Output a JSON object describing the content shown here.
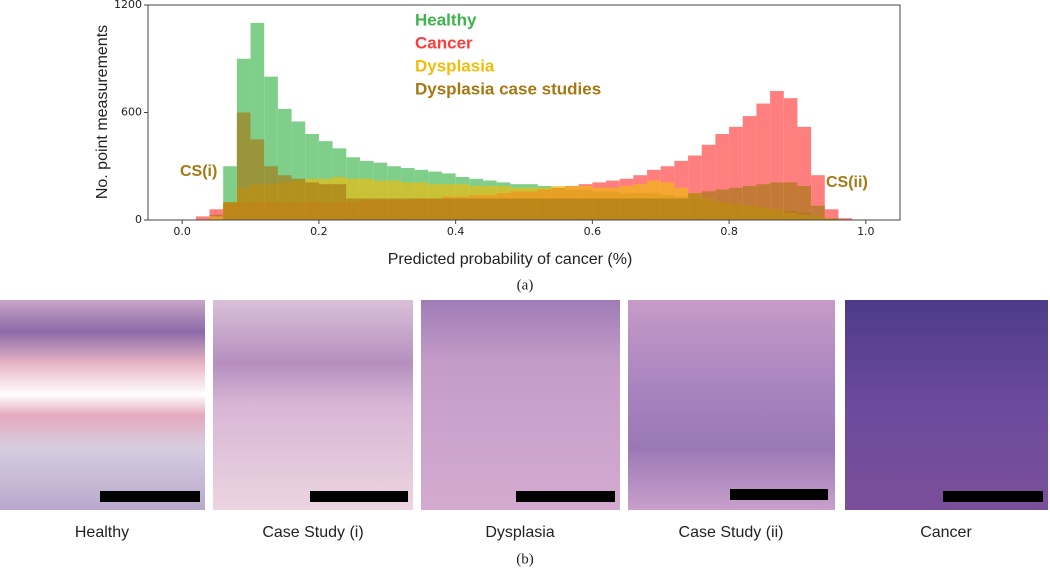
{
  "chart_data": {
    "type": "histogram",
    "ylabel": "No. point measurements",
    "xlabel": "Predicted probability of cancer (%)",
    "xlim": [
      -0.05,
      1.05
    ],
    "ylim": [
      0,
      1200
    ],
    "xticks": [
      {
        "value": 0,
        "label": "0.0"
      },
      0.2,
      0.4,
      0.6,
      0.8,
      {
        "value": 1,
        "label": "1.0"
      }
    ],
    "yticks": [
      0,
      600,
      1200
    ],
    "legend": "upper center",
    "annotations": [
      "CS(i)",
      "CS(ii)"
    ],
    "bins": [
      0,
      0.02,
      0.04,
      0.06,
      0.08,
      0.1,
      0.12,
      0.14,
      0.16,
      0.18,
      0.2,
      0.22,
      0.24,
      0.26,
      0.28,
      0.3,
      0.32,
      0.34,
      0.36,
      0.38,
      0.4,
      0.42,
      0.44,
      0.46,
      0.48,
      0.5,
      0.52,
      0.54,
      0.56,
      0.58,
      0.6,
      0.62,
      0.64,
      0.66,
      0.68,
      0.7,
      0.72,
      0.74,
      0.76,
      0.78,
      0.8,
      0.82,
      0.84,
      0.86,
      0.88,
      0.9,
      0.92,
      0.94,
      0.96,
      0.98,
      1.0
    ],
    "series": [
      {
        "name": "Healthy",
        "color": "#3cb44b",
        "values": [
          0,
          0,
          30,
          300,
          900,
          1100,
          800,
          620,
          550,
          480,
          440,
          400,
          350,
          330,
          320,
          300,
          290,
          280,
          270,
          260,
          240,
          230,
          220,
          210,
          200,
          200,
          190,
          180,
          170,
          170,
          160,
          160,
          150,
          150,
          150,
          140,
          130,
          120,
          110,
          100,
          90,
          80,
          70,
          60,
          50,
          40,
          20,
          5,
          0,
          0
        ]
      },
      {
        "name": "Cancer",
        "color": "#ff3b3b",
        "values": [
          0,
          20,
          60,
          90,
          100,
          100,
          100,
          100,
          100,
          100,
          100,
          100,
          100,
          110,
          110,
          110,
          110,
          120,
          120,
          130,
          130,
          140,
          140,
          150,
          160,
          160,
          170,
          180,
          190,
          200,
          210,
          220,
          230,
          250,
          280,
          300,
          330,
          360,
          420,
          480,
          520,
          580,
          650,
          720,
          680,
          520,
          250,
          60,
          10,
          0
        ]
      },
      {
        "name": "Dysplasia",
        "color": "#f2bd0a",
        "values": [
          0,
          0,
          20,
          100,
          180,
          200,
          200,
          210,
          220,
          230,
          230,
          240,
          230,
          230,
          220,
          220,
          210,
          210,
          200,
          200,
          200,
          190,
          190,
          190,
          180,
          180,
          180,
          190,
          190,
          190,
          180,
          180,
          190,
          200,
          220,
          210,
          180,
          150,
          120,
          100,
          90,
          80,
          70,
          60,
          40,
          30,
          20,
          10,
          0,
          0
        ]
      },
      {
        "name": "Dysplasia case studies",
        "color": "#a67812",
        "values": [
          0,
          0,
          0,
          100,
          600,
          450,
          300,
          250,
          230,
          210,
          200,
          200,
          120,
          120,
          120,
          120,
          120,
          120,
          120,
          120,
          120,
          120,
          120,
          120,
          120,
          120,
          120,
          120,
          120,
          120,
          120,
          120,
          120,
          120,
          120,
          120,
          120,
          150,
          160,
          170,
          180,
          190,
          200,
          210,
          210,
          190,
          80,
          10,
          0,
          0
        ]
      }
    ]
  },
  "figure": {
    "label_a": "(a)",
    "label_b": "(b)",
    "panels": [
      "Healthy",
      "Case Study (i)",
      "Dysplasia",
      "Case Study (ii)",
      "Cancer"
    ]
  }
}
